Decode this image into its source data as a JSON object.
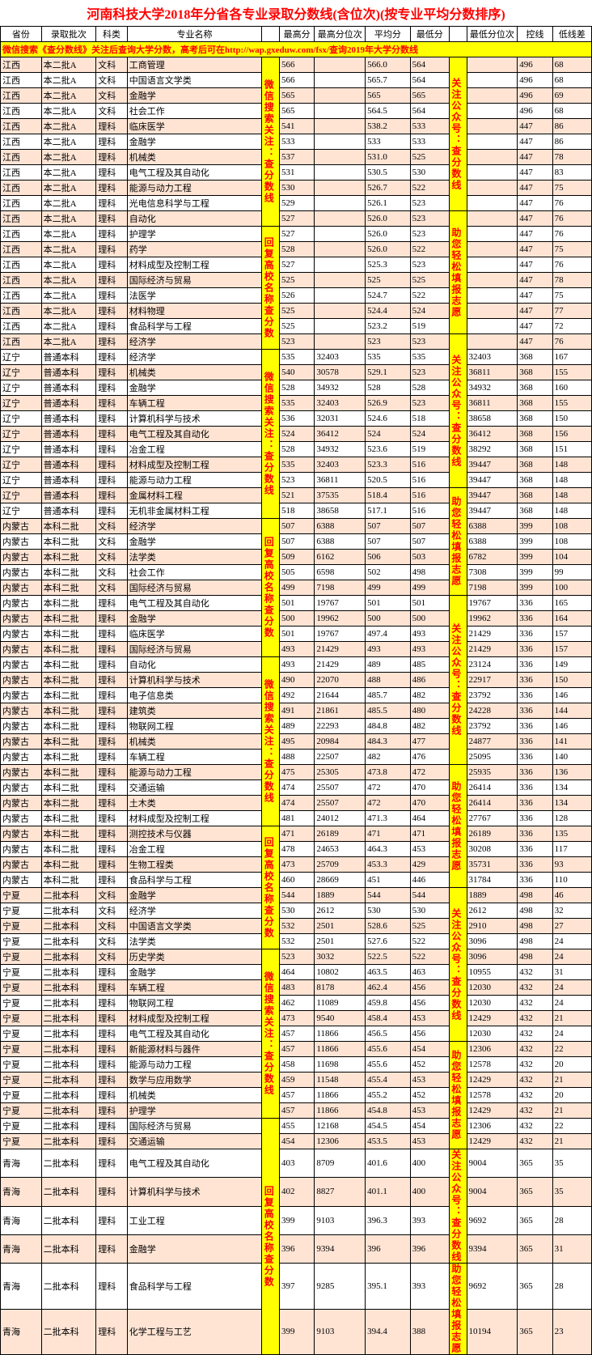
{
  "title": "河南科技大学2018年分省各专业录取分数线(含位次)(按专业平均分数排序)",
  "headers": [
    "省份",
    "录取批次",
    "科类",
    "专业名称",
    "",
    "最高分",
    "最高分位次",
    "平均分",
    "最低分",
    "",
    "最低分位次",
    "控线",
    "低线差"
  ],
  "hint_row": "微信搜索《查分数线》关注后查询大学分数，高考后可在http://wap.gxeduw.com/fsx/查询2019年大学分数线",
  "vertical_texts": {
    "left": [
      "微信搜索关注：查分数线",
      "回复高校名称查分数",
      "微信搜索关注：查分数线",
      "回复高校名称查分数"
    ],
    "right": [
      "关注公众号：查分数线",
      "助您轻松填报志愿",
      "关注公众号：查分数线",
      "助您轻松填报志愿",
      "关注公众号：查分数线",
      "助您轻松填报志愿"
    ]
  },
  "left_spans": [
    11,
    8,
    11,
    9,
    11,
    8,
    11,
    9
  ],
  "right_spans": [
    10,
    8,
    10,
    7,
    11,
    8,
    10,
    7,
    4,
    3
  ],
  "colors": {
    "highlight_bg": "#ffff00",
    "highlight_fg": "#ff0000",
    "odd_bg": "#ffe4d4",
    "even_bg": "#ffffff",
    "border": "#000000",
    "title_color": "#ff0000"
  },
  "rows": [
    [
      "江西",
      "本二批A",
      "文科",
      "工商管理",
      "566",
      "",
      "566.0",
      "564",
      "",
      "496",
      "68"
    ],
    [
      "江西",
      "本二批A",
      "文科",
      "中国语言文学类",
      "566",
      "",
      "565.7",
      "564",
      "",
      "496",
      "68"
    ],
    [
      "江西",
      "本二批A",
      "文科",
      "金融学",
      "565",
      "",
      "565",
      "565",
      "",
      "496",
      "69"
    ],
    [
      "江西",
      "本二批A",
      "文科",
      "社会工作",
      "565",
      "",
      "564.5",
      "564",
      "",
      "496",
      "68"
    ],
    [
      "江西",
      "本二批A",
      "理科",
      "临床医学",
      "541",
      "",
      "538.2",
      "533",
      "",
      "447",
      "86"
    ],
    [
      "江西",
      "本二批A",
      "理科",
      "金融学",
      "533",
      "",
      "533",
      "533",
      "",
      "447",
      "86"
    ],
    [
      "江西",
      "本二批A",
      "理科",
      "机械类",
      "537",
      "",
      "531.0",
      "525",
      "",
      "447",
      "78"
    ],
    [
      "江西",
      "本二批A",
      "理科",
      "电气工程及其自动化",
      "531",
      "",
      "530.5",
      "530",
      "",
      "447",
      "83"
    ],
    [
      "江西",
      "本二批A",
      "理科",
      "能源与动力工程",
      "530",
      "",
      "526.7",
      "522",
      "",
      "447",
      "75"
    ],
    [
      "江西",
      "本二批A",
      "理科",
      "光电信息科学与工程",
      "529",
      "",
      "526.1",
      "523",
      "",
      "447",
      "76"
    ],
    [
      "江西",
      "本二批A",
      "理科",
      "自动化",
      "527",
      "",
      "526.0",
      "523",
      "",
      "447",
      "76"
    ],
    [
      "江西",
      "本二批A",
      "理科",
      "护理学",
      "527",
      "",
      "526.0",
      "523",
      "",
      "447",
      "76"
    ],
    [
      "江西",
      "本二批A",
      "理科",
      "药学",
      "528",
      "",
      "526.0",
      "522",
      "",
      "447",
      "75"
    ],
    [
      "江西",
      "本二批A",
      "理科",
      "材料成型及控制工程",
      "527",
      "",
      "525.3",
      "523",
      "",
      "447",
      "76"
    ],
    [
      "江西",
      "本二批A",
      "理科",
      "国际经济与贸易",
      "525",
      "",
      "525",
      "525",
      "",
      "447",
      "78"
    ],
    [
      "江西",
      "本二批A",
      "理科",
      "法医学",
      "526",
      "",
      "524.7",
      "522",
      "",
      "447",
      "75"
    ],
    [
      "江西",
      "本二批A",
      "理科",
      "材料物理",
      "525",
      "",
      "524.4",
      "524",
      "",
      "447",
      "77"
    ],
    [
      "江西",
      "本二批A",
      "理科",
      "食品科学与工程",
      "525",
      "",
      "523.2",
      "519",
      "",
      "447",
      "72"
    ],
    [
      "江西",
      "本二批A",
      "理科",
      "经济学",
      "523",
      "",
      "523",
      "523",
      "",
      "447",
      "76"
    ],
    [
      "辽宁",
      "普通本科",
      "理科",
      "经济学",
      "535",
      "32403",
      "535",
      "535",
      "32403",
      "368",
      "167"
    ],
    [
      "辽宁",
      "普通本科",
      "理科",
      "机械类",
      "540",
      "30578",
      "529.1",
      "523",
      "36811",
      "368",
      "155"
    ],
    [
      "辽宁",
      "普通本科",
      "理科",
      "金融学",
      "528",
      "34932",
      "528",
      "528",
      "34932",
      "368",
      "160"
    ],
    [
      "辽宁",
      "普通本科",
      "理科",
      "车辆工程",
      "535",
      "32403",
      "526.9",
      "523",
      "36811",
      "368",
      "155"
    ],
    [
      "辽宁",
      "普通本科",
      "理科",
      "计算机科学与技术",
      "536",
      "32031",
      "524.6",
      "518",
      "38658",
      "368",
      "150"
    ],
    [
      "辽宁",
      "普通本科",
      "理科",
      "电气工程及其自动化",
      "524",
      "36412",
      "524",
      "524",
      "36412",
      "368",
      "156"
    ],
    [
      "辽宁",
      "普通本科",
      "理科",
      "冶金工程",
      "528",
      "34932",
      "523.6",
      "519",
      "38292",
      "368",
      "151"
    ],
    [
      "辽宁",
      "普通本科",
      "理科",
      "材料成型及控制工程",
      "535",
      "32403",
      "523.3",
      "516",
      "39447",
      "368",
      "148"
    ],
    [
      "辽宁",
      "普通本科",
      "理科",
      "能源与动力工程",
      "523",
      "36811",
      "520.5",
      "516",
      "39447",
      "368",
      "148"
    ],
    [
      "辽宁",
      "普通本科",
      "理科",
      "金属材料工程",
      "521",
      "37535",
      "518.4",
      "516",
      "39447",
      "368",
      "148"
    ],
    [
      "辽宁",
      "普通本科",
      "理科",
      "无机非金属材料工程",
      "518",
      "38658",
      "517.1",
      "516",
      "39447",
      "368",
      "148"
    ],
    [
      "内蒙古",
      "本科二批",
      "文科",
      "经济学",
      "507",
      "6388",
      "507",
      "507",
      "6388",
      "399",
      "108"
    ],
    [
      "内蒙古",
      "本科二批",
      "文科",
      "金融学",
      "507",
      "6388",
      "507",
      "507",
      "6388",
      "399",
      "108"
    ],
    [
      "内蒙古",
      "本科二批",
      "文科",
      "法学类",
      "509",
      "6162",
      "506",
      "503",
      "6782",
      "399",
      "104"
    ],
    [
      "内蒙古",
      "本科二批",
      "文科",
      "社会工作",
      "505",
      "6598",
      "502",
      "498",
      "7308",
      "399",
      "99"
    ],
    [
      "内蒙古",
      "本科二批",
      "文科",
      "国际经济与贸易",
      "499",
      "7198",
      "499",
      "499",
      "7198",
      "399",
      "100"
    ],
    [
      "内蒙古",
      "本科二批",
      "理科",
      "电气工程及其自动化",
      "501",
      "19767",
      "501",
      "501",
      "19767",
      "336",
      "165"
    ],
    [
      "内蒙古",
      "本科二批",
      "理科",
      "金融学",
      "500",
      "19962",
      "500",
      "500",
      "19962",
      "336",
      "164"
    ],
    [
      "内蒙古",
      "本科二批",
      "理科",
      "临床医学",
      "501",
      "19767",
      "497.4",
      "493",
      "21429",
      "336",
      "157"
    ],
    [
      "内蒙古",
      "本科二批",
      "理科",
      "国际经济与贸易",
      "493",
      "21429",
      "493",
      "493",
      "21429",
      "336",
      "157"
    ],
    [
      "内蒙古",
      "本科二批",
      "理科",
      "自动化",
      "493",
      "21429",
      "489",
      "485",
      "23124",
      "336",
      "149"
    ],
    [
      "内蒙古",
      "本科二批",
      "理科",
      "计算机科学与技术",
      "490",
      "22070",
      "488",
      "486",
      "22917",
      "336",
      "150"
    ],
    [
      "内蒙古",
      "本科二批",
      "理科",
      "电子信息类",
      "492",
      "21644",
      "485.7",
      "482",
      "23792",
      "336",
      "146"
    ],
    [
      "内蒙古",
      "本科二批",
      "理科",
      "建筑类",
      "491",
      "21861",
      "485.5",
      "480",
      "24228",
      "336",
      "144"
    ],
    [
      "内蒙古",
      "本科二批",
      "理科",
      "物联网工程",
      "489",
      "22293",
      "484.8",
      "482",
      "23792",
      "336",
      "146"
    ],
    [
      "内蒙古",
      "本科二批",
      "理科",
      "机械类",
      "495",
      "20984",
      "484.3",
      "477",
      "24877",
      "336",
      "141"
    ],
    [
      "内蒙古",
      "本科二批",
      "理科",
      "车辆工程",
      "488",
      "22507",
      "482",
      "476",
      "25095",
      "336",
      "140"
    ],
    [
      "内蒙古",
      "本科二批",
      "理科",
      "能源与动力工程",
      "475",
      "25305",
      "473.8",
      "472",
      "25935",
      "336",
      "136"
    ],
    [
      "内蒙古",
      "本科二批",
      "理科",
      "交通运输",
      "474",
      "25507",
      "472",
      "470",
      "26414",
      "336",
      "134"
    ],
    [
      "内蒙古",
      "本科二批",
      "理科",
      "土木类",
      "474",
      "25507",
      "472",
      "470",
      "26414",
      "336",
      "134"
    ],
    [
      "内蒙古",
      "本科二批",
      "理科",
      "材料成型及控制工程",
      "481",
      "24012",
      "471.3",
      "464",
      "27767",
      "336",
      "128"
    ],
    [
      "内蒙古",
      "本科二批",
      "理科",
      "测控技术与仪器",
      "471",
      "26189",
      "471",
      "471",
      "26189",
      "336",
      "135"
    ],
    [
      "内蒙古",
      "本科二批",
      "理科",
      "冶金工程",
      "478",
      "24653",
      "464.3",
      "453",
      "30208",
      "336",
      "117"
    ],
    [
      "内蒙古",
      "本科二批",
      "理科",
      "生物工程类",
      "473",
      "25709",
      "453.3",
      "429",
      "35731",
      "336",
      "93"
    ],
    [
      "内蒙古",
      "本科二批",
      "理科",
      "食品科学与工程",
      "460",
      "28669",
      "451",
      "446",
      "31784",
      "336",
      "110"
    ],
    [
      "宁夏",
      "二批本科",
      "文科",
      "金融学",
      "544",
      "1889",
      "544",
      "544",
      "1889",
      "498",
      "46"
    ],
    [
      "宁夏",
      "二批本科",
      "文科",
      "经济学",
      "530",
      "2612",
      "530",
      "530",
      "2612",
      "498",
      "32"
    ],
    [
      "宁夏",
      "二批本科",
      "文科",
      "中国语言文学类",
      "532",
      "2501",
      "528.6",
      "525",
      "2910",
      "498",
      "27"
    ],
    [
      "宁夏",
      "二批本科",
      "文科",
      "法学类",
      "532",
      "2501",
      "527.6",
      "522",
      "3096",
      "498",
      "24"
    ],
    [
      "宁夏",
      "二批本科",
      "文科",
      "历史学类",
      "523",
      "3032",
      "522.5",
      "522",
      "3096",
      "498",
      "24"
    ],
    [
      "宁夏",
      "二批本科",
      "理科",
      "金融学",
      "464",
      "10802",
      "463.5",
      "463",
      "10955",
      "432",
      "31"
    ],
    [
      "宁夏",
      "二批本科",
      "理科",
      "车辆工程",
      "483",
      "8178",
      "462.4",
      "456",
      "12030",
      "432",
      "24"
    ],
    [
      "宁夏",
      "二批本科",
      "理科",
      "物联网工程",
      "462",
      "11089",
      "459.8",
      "456",
      "12030",
      "432",
      "24"
    ],
    [
      "宁夏",
      "二批本科",
      "理科",
      "材料成型及控制工程",
      "473",
      "9540",
      "458.4",
      "453",
      "12429",
      "432",
      "21"
    ],
    [
      "宁夏",
      "二批本科",
      "理科",
      "电气工程及其自动化",
      "457",
      "11866",
      "456.5",
      "456",
      "12030",
      "432",
      "24"
    ],
    [
      "宁夏",
      "二批本科",
      "理科",
      "新能源材料与器件",
      "457",
      "11866",
      "455.6",
      "454",
      "12306",
      "432",
      "22"
    ],
    [
      "宁夏",
      "二批本科",
      "理科",
      "能源与动力工程",
      "458",
      "11698",
      "455.6",
      "452",
      "12578",
      "432",
      "20"
    ],
    [
      "宁夏",
      "二批本科",
      "理科",
      "数学与应用数学",
      "459",
      "11548",
      "455.4",
      "453",
      "12429",
      "432",
      "21"
    ],
    [
      "宁夏",
      "二批本科",
      "理科",
      "机械类",
      "457",
      "11866",
      "455.2",
      "452",
      "12578",
      "432",
      "20"
    ],
    [
      "宁夏",
      "二批本科",
      "理科",
      "护理学",
      "457",
      "11866",
      "454.8",
      "453",
      "12429",
      "432",
      "21"
    ],
    [
      "宁夏",
      "二批本科",
      "理科",
      "国际经济与贸易",
      "455",
      "12168",
      "454.5",
      "454",
      "12306",
      "432",
      "22"
    ],
    [
      "宁夏",
      "二批本科",
      "理科",
      "交通运输",
      "454",
      "12306",
      "453.5",
      "453",
      "12429",
      "432",
      "21"
    ],
    [
      "青海",
      "二批本科",
      "理科",
      "电气工程及其自动化",
      "403",
      "8709",
      "401.6",
      "400",
      "9004",
      "365",
      "35"
    ],
    [
      "青海",
      "二批本科",
      "理科",
      "计算机科学与技术",
      "402",
      "8827",
      "401.1",
      "400",
      "9004",
      "365",
      "35"
    ],
    [
      "青海",
      "二批本科",
      "理科",
      "工业工程",
      "399",
      "9103",
      "396.3",
      "393",
      "9692",
      "365",
      "28"
    ],
    [
      "青海",
      "二批本科",
      "理科",
      "金融学",
      "396",
      "9394",
      "396",
      "396",
      "9394",
      "365",
      "31"
    ],
    [
      "青海",
      "二批本科",
      "理科",
      "食品科学与工程",
      "397",
      "9285",
      "395.1",
      "393",
      "9692",
      "365",
      "28"
    ],
    [
      "青海",
      "二批本科",
      "理科",
      "化学工程与工艺",
      "399",
      "9103",
      "394.4",
      "388",
      "10194",
      "365",
      "23"
    ]
  ]
}
